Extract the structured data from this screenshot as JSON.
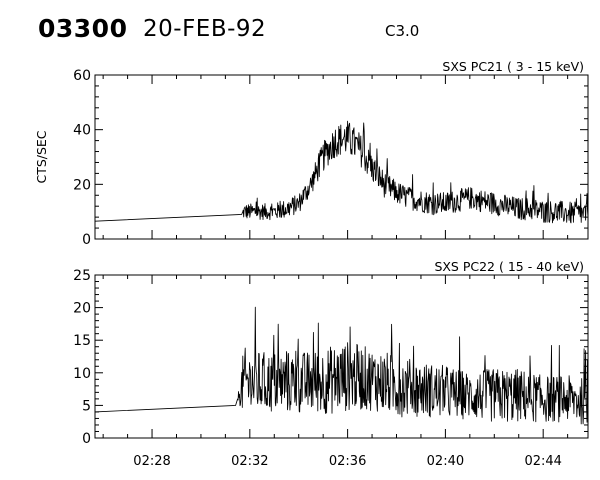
{
  "header": {
    "event_id": "03300",
    "date": "20-FEB-92",
    "flare_class": "C3.0"
  },
  "chart_data": [
    {
      "type": "line",
      "title": "SXS PC21  (  3 - 15 keV)",
      "xlabel": "",
      "ylabel": "CTS/SEC",
      "xlim": [
        "02:25:40",
        "02:45:50"
      ],
      "ylim": [
        0,
        60
      ],
      "yticks": [
        0,
        20,
        40,
        60
      ],
      "xticks": [
        "02:28",
        "02:32",
        "02:36",
        "02:40",
        "02:44"
      ],
      "grid": false,
      "series": [
        {
          "x": [
            "02:25:40",
            "02:31:40",
            "02:31:45",
            "02:32:00",
            "02:32:30",
            "02:33:00",
            "02:33:30",
            "02:34:00",
            "02:34:30",
            "02:35:00",
            "02:35:30",
            "02:36:00",
            "02:36:30",
            "02:37:00",
            "02:37:30",
            "02:38:00",
            "02:38:30",
            "02:39:00",
            "02:39:30",
            "02:40:00",
            "02:40:30",
            "02:41:00",
            "02:41:30",
            "02:42:00",
            "02:42:30",
            "02:43:00",
            "02:43:30",
            "02:44:00",
            "02:44:30",
            "02:45:00",
            "02:45:50"
          ],
          "y": [
            6.5,
            9.0,
            10,
            10,
            10,
            10,
            11,
            13,
            20,
            30,
            36,
            37,
            33,
            26,
            20,
            17,
            15,
            14,
            13,
            13,
            14,
            15,
            14,
            13,
            12,
            11,
            11,
            10,
            10,
            9.5,
            9
          ],
          "noise": [
            0,
            0,
            2.5,
            2.5,
            2.5,
            2.5,
            3,
            3,
            3.5,
            4.5,
            5,
            5.5,
            5,
            4.5,
            4,
            3.5,
            3.5,
            3.5,
            3.5,
            3.5,
            3.5,
            3.5,
            3.5,
            3.5,
            3.5,
            3.5,
            3.5,
            3.5,
            3.5,
            3.5,
            3.5
          ]
        }
      ]
    },
    {
      "type": "line",
      "title": "SXS PC22  ( 15 - 40 keV)",
      "xlabel": "",
      "ylabel": "",
      "xlim": [
        "02:25:40",
        "02:45:50"
      ],
      "ylim": [
        0,
        25
      ],
      "yticks": [
        0,
        5,
        10,
        15,
        20,
        25
      ],
      "xticks": [
        "02:28",
        "02:32",
        "02:36",
        "02:40",
        "02:44"
      ],
      "grid": false,
      "series": [
        {
          "x": [
            "02:25:40",
            "02:31:25",
            "02:31:30",
            "02:31:45",
            "02:32:30",
            "02:33:30",
            "02:34:30",
            "02:35:30",
            "02:36:00",
            "02:37:00",
            "02:38:00",
            "02:39:00",
            "02:40:00",
            "02:41:00",
            "02:42:00",
            "02:43:00",
            "02:44:00",
            "02:45:00",
            "02:45:50"
          ],
          "y": [
            4.0,
            5.0,
            6.0,
            8.5,
            8.5,
            8.5,
            8.5,
            9.0,
            9.5,
            9.0,
            8.0,
            7.5,
            7.0,
            6.5,
            6.5,
            6.5,
            6.0,
            6.0,
            5.5
          ],
          "noise": [
            0,
            0,
            0,
            4.5,
            4.0,
            4.0,
            4.0,
            4.5,
            4.5,
            4.0,
            4.0,
            3.5,
            3.5,
            3.0,
            3.5,
            3.5,
            3.0,
            3.0,
            3.0
          ]
        }
      ]
    }
  ]
}
